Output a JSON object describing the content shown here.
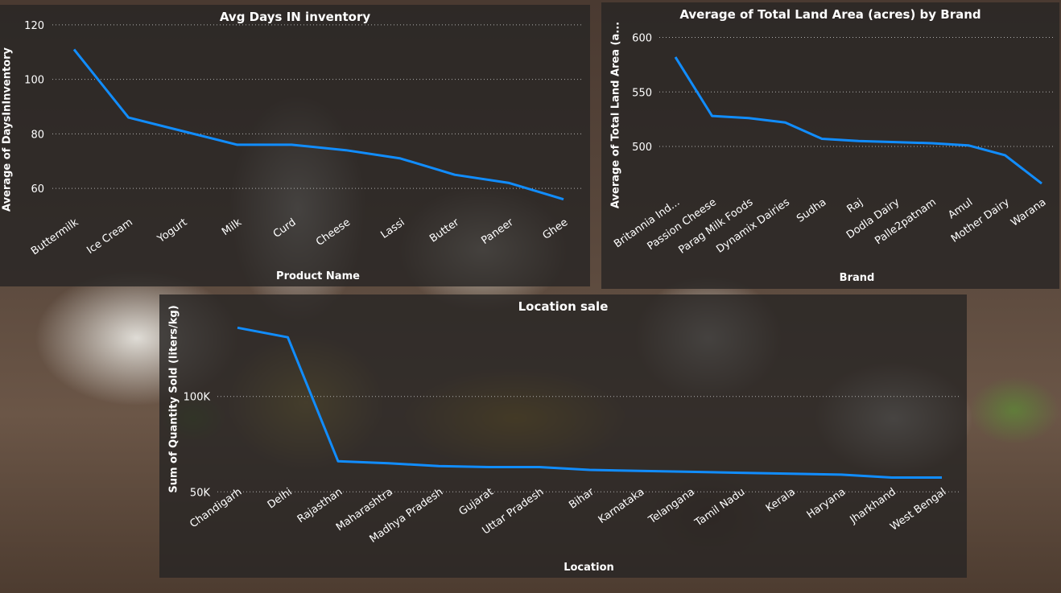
{
  "chart_data": [
    {
      "id": "inventory",
      "type": "line",
      "title": "Avg Days IN inventory",
      "xlabel": "Product Name",
      "ylabel": "Average of DaysInInventory",
      "categories": [
        "Buttermilk",
        "Ice Cream",
        "Yogurt",
        "Milk",
        "Curd",
        "Cheese",
        "Lassi",
        "Butter",
        "Paneer",
        "Ghee"
      ],
      "values": [
        111,
        86,
        81,
        76,
        76,
        74,
        71,
        65,
        62,
        56
      ],
      "ylim": [
        50,
        125
      ],
      "yticks": [
        60,
        80,
        100,
        120
      ],
      "ytick_labels": [
        "60",
        "80",
        "100",
        "120"
      ],
      "grid": true,
      "color": "#118dff"
    },
    {
      "id": "land",
      "type": "line",
      "title": "Average of Total Land Area (acres) by Brand",
      "xlabel": "Brand",
      "ylabel": "Average of Total Land Area (a...",
      "categories": [
        "Britannia Ind...",
        "Passion Cheese",
        "Parag Milk Foods",
        "Dynamix Dairies",
        "Sudha",
        "Raj",
        "Dodla Dairy",
        "Palle2patnam",
        "Amul",
        "Mother Dairy",
        "Warana"
      ],
      "values": [
        582,
        528,
        526,
        522,
        507,
        505,
        504,
        503,
        501,
        492,
        466
      ],
      "ylim": [
        455,
        610
      ],
      "yticks": [
        500,
        550,
        600
      ],
      "ytick_labels": [
        "500",
        "550",
        "600"
      ],
      "grid": true,
      "color": "#118dff"
    },
    {
      "id": "location",
      "type": "line",
      "title": "Location sale",
      "xlabel": "Location",
      "ylabel": "Sum of Quantity Sold (liters/kg)",
      "categories": [
        "Chandigarh",
        "Delhi",
        "Rajasthan",
        "Maharashtra",
        "Madhya Pradesh",
        "Gujarat",
        "Uttar Pradesh",
        "Bihar",
        "Karnataka",
        "Telangana",
        "Tamil Nadu",
        "Kerala",
        "Haryana",
        "Jharkhand",
        "West Bengal"
      ],
      "values": [
        136000,
        131000,
        66000,
        65000,
        63500,
        63000,
        63000,
        61500,
        61000,
        60500,
        60000,
        59500,
        59000,
        57500,
        57500
      ],
      "ylim": [
        40000,
        145000
      ],
      "yticks": [
        50000,
        100000
      ],
      "ytick_labels": [
        "50K",
        "100K"
      ],
      "grid": true,
      "color": "#118dff"
    }
  ]
}
